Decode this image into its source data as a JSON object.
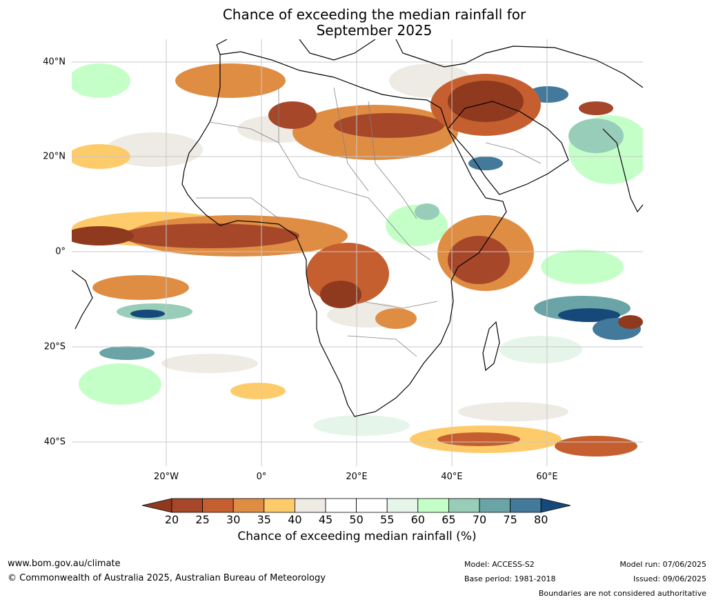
{
  "title_line1": "Chance of exceeding the median rainfall for",
  "title_line2": "September 2025",
  "lat_labels": [
    "40°N",
    "20°N",
    "0°",
    "20°S",
    "40°S"
  ],
  "lon_labels": [
    "20°W",
    "0°",
    "20°E",
    "40°E",
    "60°E"
  ],
  "colorbar": {
    "ticks": [
      "20",
      "25",
      "30",
      "35",
      "40",
      "45",
      "50",
      "55",
      "60",
      "65",
      "70",
      "75",
      "80"
    ],
    "colors": [
      "#8f3a1e",
      "#a6472a",
      "#c55f30",
      "#e08d44",
      "#fecb6b",
      "#eeebe5",
      "#ffffff",
      "#ffffff",
      "#e6f5e9",
      "#c5ffc8",
      "#98cdb9",
      "#6aa4a6",
      "#43799a",
      "#16487a"
    ],
    "label": "Chance of exceeding median rainfall (%)"
  },
  "footer": {
    "website": "www.bom.gov.au/climate",
    "copyright": "© Commonwealth of Australia 2025, Australian Bureau of Meteorology",
    "model": "Model: ACCESS-S2",
    "base_period": "Base period: 1981-2018",
    "model_run": "Model run: 07/06/2025",
    "issued": "Issued: 09/06/2025",
    "disclaimer": "Boundaries are not considered authoritative"
  },
  "map_colors": {
    "land_border": "#000000",
    "country_border": "#808080",
    "gridline": "#c8c8c8"
  }
}
